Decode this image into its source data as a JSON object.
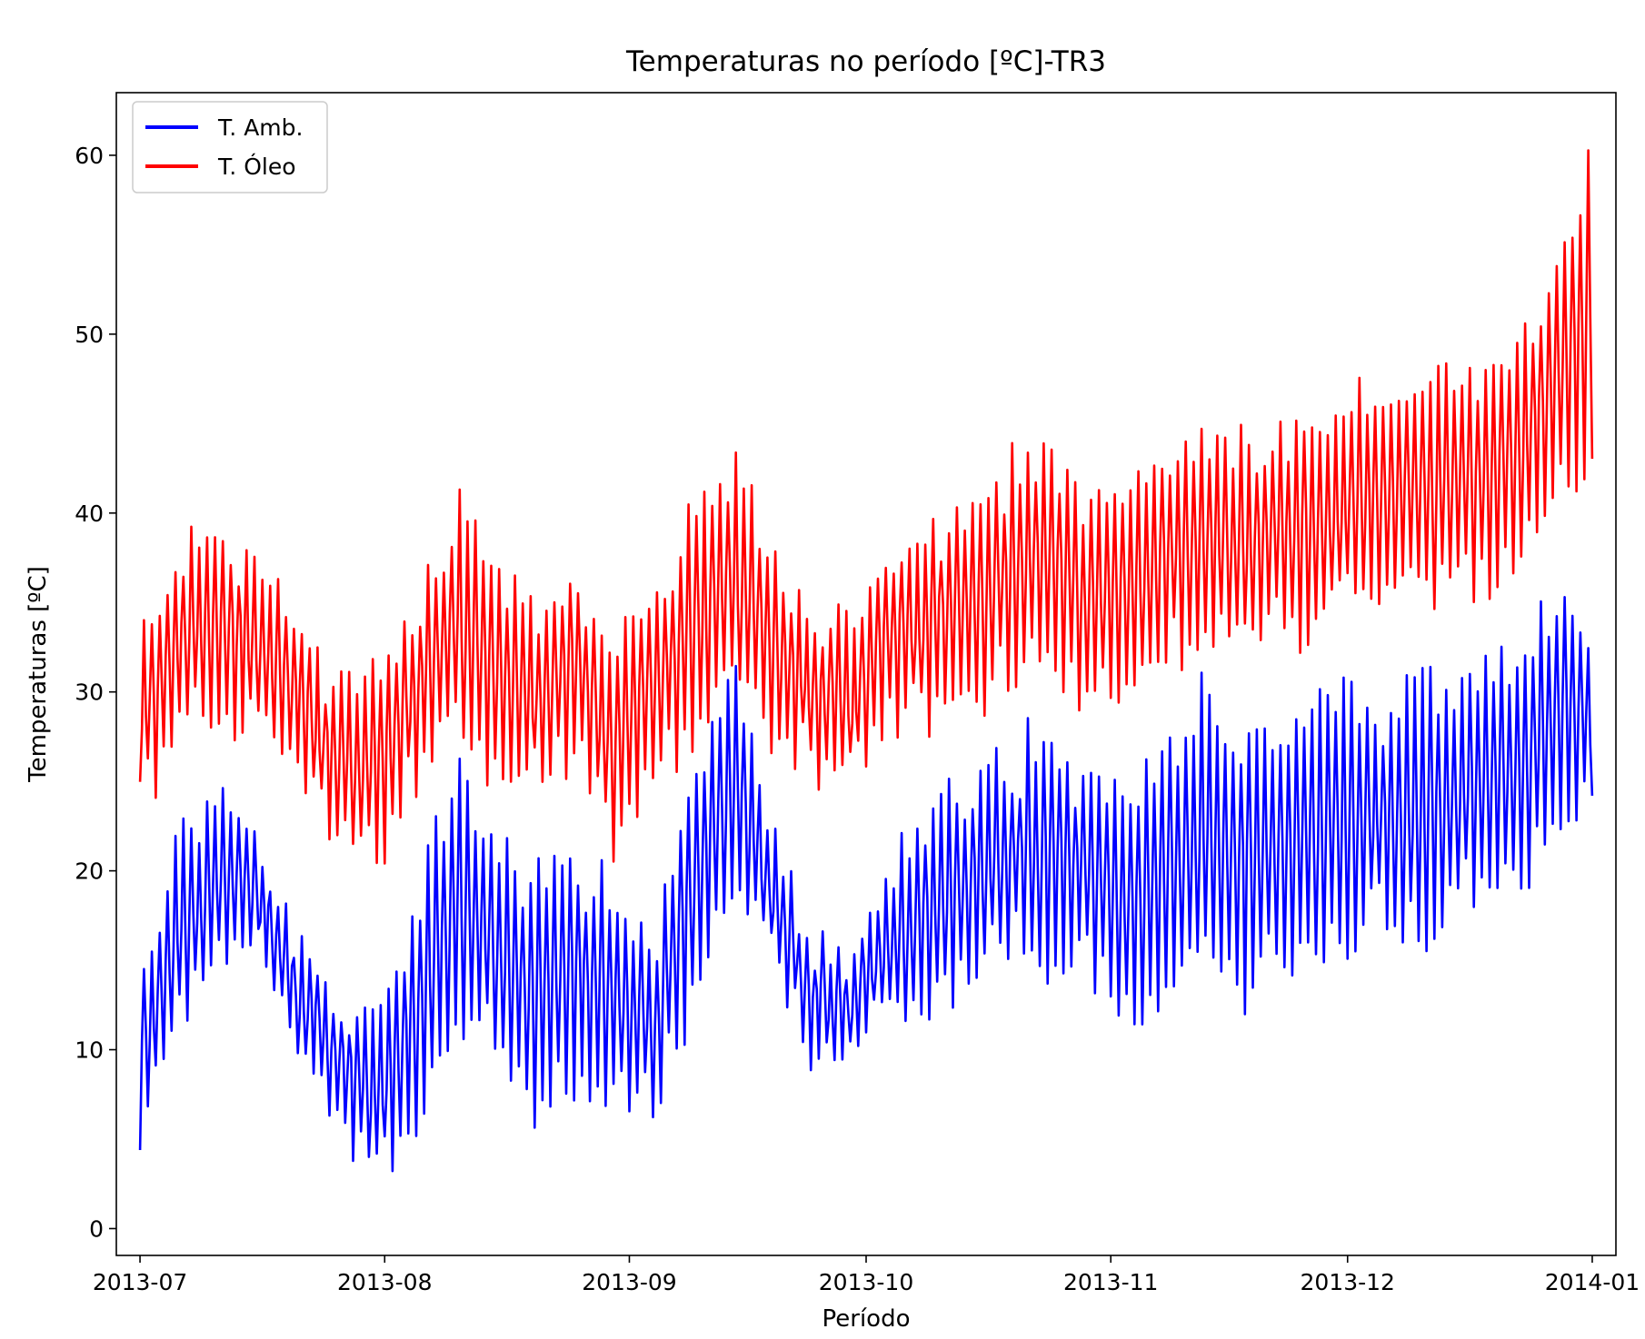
{
  "chart_data": {
    "type": "line",
    "title": "Temperaturas no período [ºC]-TR3",
    "xlabel": "Período",
    "ylabel": "Temperaturas [ºC]",
    "ylim": [
      -1.5,
      63.5
    ],
    "yticks": [
      0,
      10,
      20,
      30,
      40,
      50,
      60
    ],
    "xticks": [
      "2013-07",
      "2013-08",
      "2013-09",
      "2013-10",
      "2013-11",
      "2013-12",
      "2014-01"
    ],
    "xlim_days": [
      -3,
      187
    ],
    "legend_position": "upper-left",
    "note": "x = days since 2013-07-01; daily low/high envelope of an hourly signal",
    "series": [
      {
        "name": "T. Amb.",
        "color": "#0000ff",
        "x": [
          0,
          5,
          10,
          15,
          20,
          25,
          30,
          35,
          40,
          45,
          50,
          55,
          60,
          65,
          70,
          75,
          80,
          85,
          90,
          95,
          100,
          105,
          110,
          115,
          120,
          125,
          130,
          135,
          140,
          145,
          150,
          155,
          160,
          165,
          170,
          175,
          180,
          184
        ],
        "low": [
          5,
          12,
          15,
          16,
          10,
          7,
          3,
          6,
          12,
          10,
          7,
          9,
          8,
          7,
          13,
          19,
          16,
          10,
          10,
          12,
          13,
          14,
          16,
          15,
          15,
          12,
          13,
          15,
          14,
          15,
          16,
          17,
          17,
          17,
          20,
          20,
          23,
          24
        ],
        "high": [
          13,
          22,
          24,
          21,
          16,
          12,
          11,
          18,
          25,
          22,
          19,
          20,
          19,
          15,
          25,
          31,
          22,
          16,
          15,
          20,
          23,
          25,
          26,
          27,
          25,
          24,
          27,
          29,
          27,
          28,
          29,
          29,
          29,
          30,
          31,
          31,
          36,
          32
        ]
      },
      {
        "name": "T. Óleo",
        "color": "#ff0000",
        "x": [
          0,
          5,
          10,
          15,
          20,
          25,
          30,
          35,
          40,
          45,
          50,
          55,
          60,
          65,
          70,
          75,
          80,
          85,
          90,
          95,
          100,
          105,
          110,
          115,
          120,
          125,
          130,
          135,
          140,
          145,
          150,
          155,
          160,
          165,
          170,
          175,
          180,
          184
        ],
        "low": [
          24,
          29,
          29,
          29,
          26,
          22,
          21,
          25,
          28,
          26,
          25,
          27,
          21,
          26,
          28,
          30,
          28,
          26,
          25,
          29,
          29,
          30,
          31,
          32,
          30,
          31,
          32,
          33,
          33,
          34,
          34,
          35,
          36,
          36,
          37,
          38,
          41,
          44
        ],
        "high": [
          33,
          37,
          39,
          36,
          34,
          30,
          31,
          35,
          40,
          36,
          34,
          37,
          32,
          36,
          39,
          43,
          37,
          34,
          33,
          38,
          39,
          40,
          42,
          43,
          40,
          41,
          43,
          44,
          43,
          44,
          45,
          46,
          46,
          47,
          48,
          49,
          54,
          60
        ]
      }
    ]
  }
}
